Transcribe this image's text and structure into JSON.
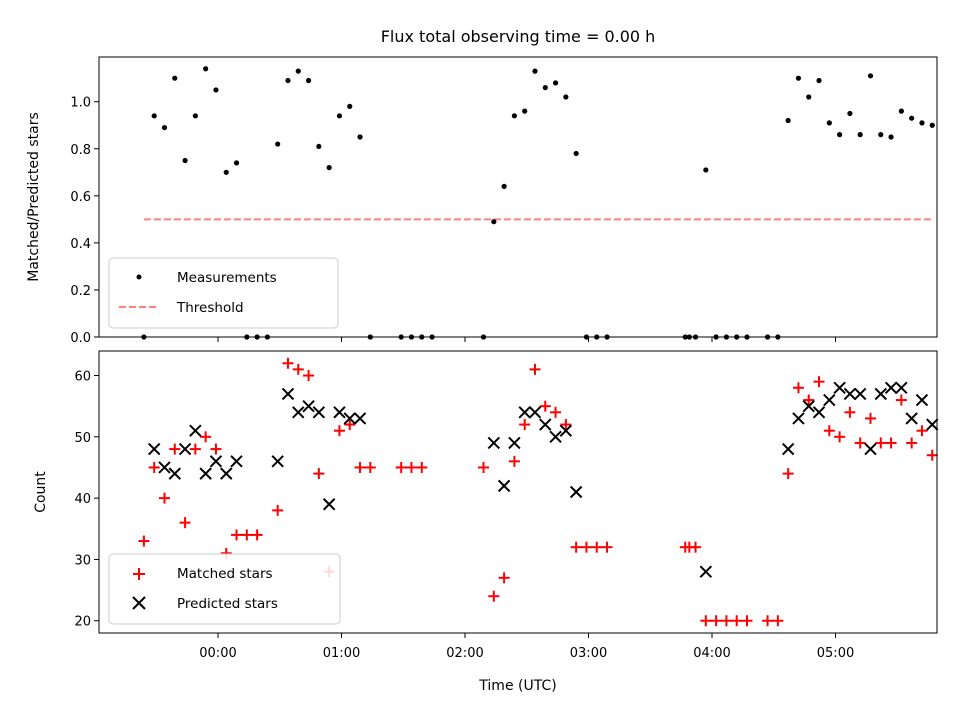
{
  "chart_data": [
    {
      "type": "scatter",
      "title": "Flux total observing time = 0.00 h",
      "ylabel": "Matched/Predicted stars",
      "xlabel": "",
      "ylim": [
        0,
        1.19
      ],
      "yticks": [
        0,
        0.2,
        0.4,
        0.6,
        0.8,
        1.0
      ],
      "ytick_labels": [
        "0.0",
        "0.2",
        "0.4",
        "0.6",
        "0.8",
        "1.0"
      ],
      "grid": false,
      "legend_position": "lower-left",
      "series": [
        {
          "name": "Measurements",
          "marker": "dot",
          "color": "#000000",
          "points": [
            [
              "23:24",
              0.0
            ],
            [
              "23:29",
              0.94
            ],
            [
              "23:34",
              0.89
            ],
            [
              "23:39",
              1.1
            ],
            [
              "23:44",
              0.75
            ],
            [
              "23:49",
              0.94
            ],
            [
              "23:54",
              1.14
            ],
            [
              "23:59",
              1.05
            ],
            [
              "00:04",
              0.7
            ],
            [
              "00:09",
              0.74
            ],
            [
              "00:14",
              0.0
            ],
            [
              "00:19",
              0.0
            ],
            [
              "00:24",
              0.0
            ],
            [
              "00:29",
              0.82
            ],
            [
              "00:34",
              1.09
            ],
            [
              "00:39",
              1.13
            ],
            [
              "00:44",
              1.09
            ],
            [
              "00:49",
              0.81
            ],
            [
              "00:54",
              0.72
            ],
            [
              "00:59",
              0.94
            ],
            [
              "01:04",
              0.98
            ],
            [
              "01:09",
              0.85
            ],
            [
              "01:14",
              0.0
            ],
            [
              "01:29",
              0.0
            ],
            [
              "01:34",
              0.0
            ],
            [
              "01:39",
              0.0
            ],
            [
              "01:44",
              0.0
            ],
            [
              "02:09",
              0.0
            ],
            [
              "02:14",
              0.49
            ],
            [
              "02:19",
              0.64
            ],
            [
              "02:24",
              0.94
            ],
            [
              "02:29",
              0.96
            ],
            [
              "02:34",
              1.13
            ],
            [
              "02:39",
              1.06
            ],
            [
              "02:44",
              1.08
            ],
            [
              "02:49",
              1.02
            ],
            [
              "02:54",
              0.78
            ],
            [
              "02:59",
              0.0
            ],
            [
              "03:04",
              0.0
            ],
            [
              "03:09",
              0.0
            ],
            [
              "03:47",
              0.0
            ],
            [
              "03:49",
              0.0
            ],
            [
              "03:52",
              0.0
            ],
            [
              "03:57",
              0.71
            ],
            [
              "04:02",
              0.0
            ],
            [
              "04:07",
              0.0
            ],
            [
              "04:12",
              0.0
            ],
            [
              "04:17",
              0.0
            ],
            [
              "04:27",
              0.0
            ],
            [
              "04:32",
              0.0
            ],
            [
              "04:37",
              0.92
            ],
            [
              "04:42",
              1.1
            ],
            [
              "04:47",
              1.02
            ],
            [
              "04:52",
              1.09
            ],
            [
              "04:57",
              0.91
            ],
            [
              "05:02",
              0.86
            ],
            [
              "05:07",
              0.95
            ],
            [
              "05:12",
              0.86
            ],
            [
              "05:17",
              1.11
            ],
            [
              "05:22",
              0.86
            ],
            [
              "05:27",
              0.85
            ],
            [
              "05:32",
              0.96
            ],
            [
              "05:37",
              0.93
            ],
            [
              "05:42",
              0.91
            ],
            [
              "05:47",
              0.9
            ]
          ]
        },
        {
          "name": "Threshold",
          "style": "dashed-line",
          "color": "#ff7f7f",
          "points": [
            [
              "23:24",
              0.5
            ],
            [
              "05:47",
              0.5
            ]
          ]
        }
      ]
    },
    {
      "type": "scatter",
      "title": "",
      "ylabel": "Count",
      "xlabel": "Time (UTC)",
      "ylim": [
        18,
        64
      ],
      "yticks": [
        20,
        30,
        40,
        50,
        60
      ],
      "ytick_labels": [
        "20",
        "30",
        "40",
        "50",
        "60"
      ],
      "x_ticks": [
        "00:00",
        "01:00",
        "02:00",
        "03:00",
        "04:00",
        "05:00"
      ],
      "grid": false,
      "legend_position": "lower-left",
      "series": [
        {
          "name": "Matched stars",
          "marker": "plus",
          "color": "#ff0000",
          "points": [
            [
              "23:24",
              33
            ],
            [
              "23:29",
              45
            ],
            [
              "23:34",
              40
            ],
            [
              "23:39",
              48
            ],
            [
              "23:44",
              36
            ],
            [
              "23:49",
              48
            ],
            [
              "23:54",
              50
            ],
            [
              "23:59",
              48
            ],
            [
              "00:04",
              31
            ],
            [
              "00:09",
              34
            ],
            [
              "00:14",
              34
            ],
            [
              "00:19",
              34
            ],
            [
              "00:29",
              38
            ],
            [
              "00:34",
              62
            ],
            [
              "00:39",
              61
            ],
            [
              "00:44",
              60
            ],
            [
              "00:49",
              44
            ],
            [
              "00:54",
              28
            ],
            [
              "00:59",
              51
            ],
            [
              "01:04",
              52
            ],
            [
              "01:09",
              45
            ],
            [
              "01:14",
              45
            ],
            [
              "01:29",
              45
            ],
            [
              "01:34",
              45
            ],
            [
              "01:39",
              45
            ],
            [
              "02:09",
              45
            ],
            [
              "02:14",
              24
            ],
            [
              "02:19",
              27
            ],
            [
              "02:24",
              46
            ],
            [
              "02:29",
              52
            ],
            [
              "02:34",
              61
            ],
            [
              "02:39",
              55
            ],
            [
              "02:44",
              54
            ],
            [
              "02:49",
              52
            ],
            [
              "02:54",
              32
            ],
            [
              "02:59",
              32
            ],
            [
              "03:04",
              32
            ],
            [
              "03:09",
              32
            ],
            [
              "03:47",
              32
            ],
            [
              "03:49",
              32
            ],
            [
              "03:52",
              32
            ],
            [
              "03:57",
              20
            ],
            [
              "04:02",
              20
            ],
            [
              "04:07",
              20
            ],
            [
              "04:12",
              20
            ],
            [
              "04:17",
              20
            ],
            [
              "04:27",
              20
            ],
            [
              "04:32",
              20
            ],
            [
              "04:37",
              44
            ],
            [
              "04:42",
              58
            ],
            [
              "04:47",
              56
            ],
            [
              "04:52",
              59
            ],
            [
              "04:57",
              51
            ],
            [
              "05:02",
              50
            ],
            [
              "05:07",
              54
            ],
            [
              "05:12",
              49
            ],
            [
              "05:17",
              53
            ],
            [
              "05:22",
              49
            ],
            [
              "05:27",
              49
            ],
            [
              "05:32",
              56
            ],
            [
              "05:37",
              49
            ],
            [
              "05:42",
              51
            ],
            [
              "05:47",
              47
            ]
          ]
        },
        {
          "name": "Predicted stars",
          "marker": "x",
          "color": "#000000",
          "points": [
            [
              "23:29",
              48
            ],
            [
              "23:34",
              45
            ],
            [
              "23:39",
              44
            ],
            [
              "23:44",
              48
            ],
            [
              "23:49",
              51
            ],
            [
              "23:54",
              44
            ],
            [
              "23:59",
              46
            ],
            [
              "00:04",
              44
            ],
            [
              "00:09",
              46
            ],
            [
              "00:29",
              46
            ],
            [
              "00:34",
              57
            ],
            [
              "00:39",
              54
            ],
            [
              "00:44",
              55
            ],
            [
              "00:49",
              54
            ],
            [
              "00:54",
              39
            ],
            [
              "00:59",
              54
            ],
            [
              "01:04",
              53
            ],
            [
              "01:09",
              53
            ],
            [
              "02:14",
              49
            ],
            [
              "02:19",
              42
            ],
            [
              "02:24",
              49
            ],
            [
              "02:29",
              54
            ],
            [
              "02:34",
              54
            ],
            [
              "02:39",
              52
            ],
            [
              "02:44",
              50
            ],
            [
              "02:49",
              51
            ],
            [
              "02:54",
              41
            ],
            [
              "03:57",
              28
            ],
            [
              "04:37",
              48
            ],
            [
              "04:42",
              53
            ],
            [
              "04:47",
              55
            ],
            [
              "04:52",
              54
            ],
            [
              "04:57",
              56
            ],
            [
              "05:02",
              58
            ],
            [
              "05:07",
              57
            ],
            [
              "05:12",
              57
            ],
            [
              "05:17",
              48
            ],
            [
              "05:22",
              57
            ],
            [
              "05:27",
              58
            ],
            [
              "05:32",
              58
            ],
            [
              "05:37",
              53
            ],
            [
              "05:42",
              56
            ],
            [
              "05:47",
              52
            ]
          ]
        }
      ]
    }
  ]
}
